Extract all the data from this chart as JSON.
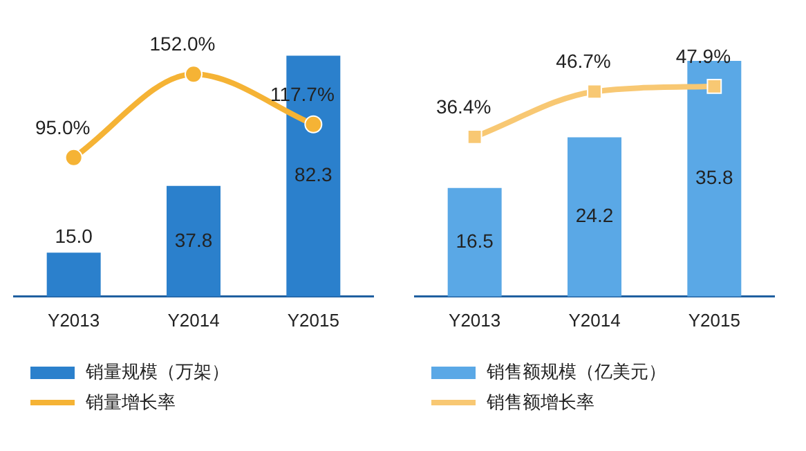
{
  "chart_data": [
    {
      "type": "bar",
      "categories": [
        "Y2013",
        "Y2014",
        "Y2015"
      ],
      "series": [
        {
          "name": "销量规模（万架）",
          "color": "#2b80cc",
          "values": [
            15.0,
            37.8,
            82.3
          ],
          "value_labels": [
            "15.0",
            "37.8",
            "82.3"
          ]
        },
        {
          "name": "销量增长率",
          "type": "line",
          "axis": "y2",
          "color": "#f5b335",
          "marker": "circle",
          "values": [
            95.0,
            152.0,
            117.7
          ],
          "value_labels": [
            "95.0%",
            "152.0%",
            "117.7%"
          ]
        }
      ],
      "legend": "bottom",
      "grid": false,
      "tick_labels": "x"
    },
    {
      "type": "bar",
      "categories": [
        "Y2013",
        "Y2014",
        "Y2015"
      ],
      "series": [
        {
          "name": "销售额规模（亿美元）",
          "color": "#5aa8e6",
          "values": [
            16.5,
            24.2,
            35.8
          ],
          "value_labels": [
            "16.5",
            "24.2",
            "35.8"
          ]
        },
        {
          "name": "销售额增长率",
          "type": "line",
          "axis": "y2",
          "color": "#f8c873",
          "marker": "square",
          "values": [
            36.4,
            46.7,
            47.9
          ],
          "value_labels": [
            "36.4%",
            "46.7%",
            "47.9%"
          ]
        }
      ],
      "legend": "bottom",
      "grid": false,
      "tick_labels": "x"
    }
  ]
}
